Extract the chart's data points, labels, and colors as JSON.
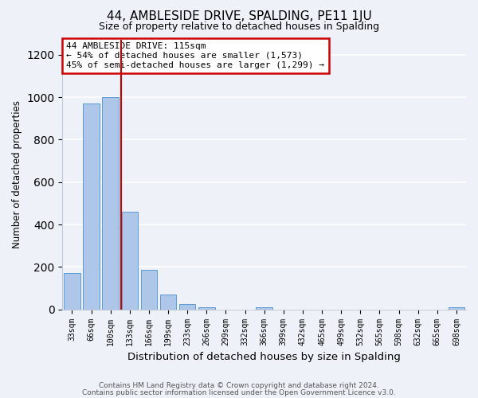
{
  "title": "44, AMBLESIDE DRIVE, SPALDING, PE11 1JU",
  "subtitle": "Size of property relative to detached houses in Spalding",
  "xlabel": "Distribution of detached houses by size in Spalding",
  "ylabel": "Number of detached properties",
  "bar_labels": [
    "33sqm",
    "66sqm",
    "100sqm",
    "133sqm",
    "166sqm",
    "199sqm",
    "233sqm",
    "266sqm",
    "299sqm",
    "332sqm",
    "366sqm",
    "399sqm",
    "432sqm",
    "465sqm",
    "499sqm",
    "532sqm",
    "565sqm",
    "598sqm",
    "632sqm",
    "665sqm",
    "698sqm"
  ],
  "bar_values": [
    170,
    970,
    1000,
    460,
    185,
    70,
    25,
    10,
    0,
    0,
    10,
    0,
    0,
    0,
    0,
    0,
    0,
    0,
    0,
    0,
    10
  ],
  "bar_color": "#aec6e8",
  "bar_edgecolor": "#5b9bd5",
  "vline_x": 2.55,
  "vline_color": "#cc0000",
  "annotation_title": "44 AMBLESIDE DRIVE: 115sqm",
  "annotation_line1": "← 54% of detached houses are smaller (1,573)",
  "annotation_line2": "45% of semi-detached houses are larger (1,299) →",
  "annotation_box_color": "#cc0000",
  "ylim": [
    0,
    1270
  ],
  "yticks": [
    0,
    200,
    400,
    600,
    800,
    1000,
    1200
  ],
  "footer1": "Contains HM Land Registry data © Crown copyright and database right 2024.",
  "footer2": "Contains public sector information licensed under the Open Government Licence v3.0.",
  "background_color": "#eef2f8",
  "plot_background": "#eef2f8",
  "grid_color": "#ffffff"
}
